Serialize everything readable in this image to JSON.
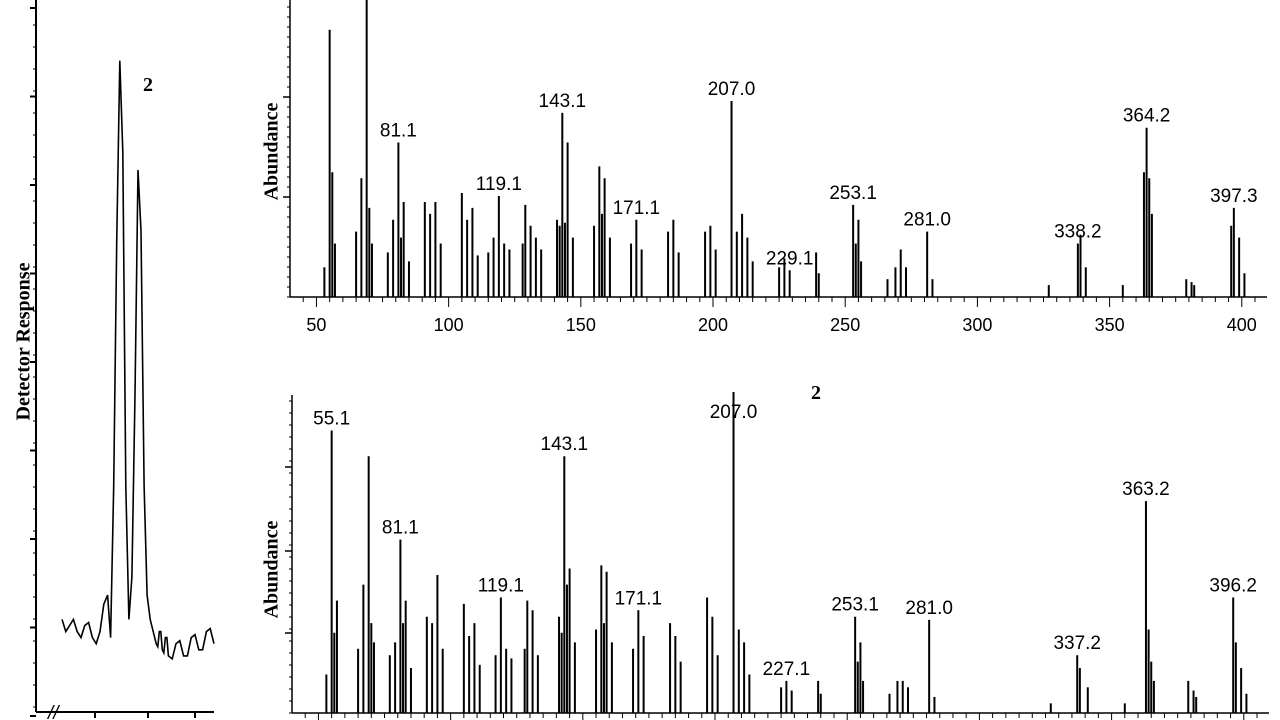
{
  "chromatogram": {
    "ylabel": "Detector Response",
    "peak_marker": "2",
    "break_mark": "//"
  },
  "chart_data": [
    {
      "type": "line",
      "title": "",
      "xlabel": "",
      "ylabel": "Detector Response",
      "annotations": [
        "2"
      ],
      "x": [
        0,
        5,
        10,
        15,
        20,
        25,
        30,
        32,
        34,
        36,
        38,
        40,
        42,
        44,
        46,
        48,
        50,
        52,
        54,
        56,
        58,
        60,
        62,
        64,
        66,
        68,
        70,
        75,
        80,
        85,
        90,
        95,
        100
      ],
      "y": [
        0.08,
        0.07,
        0.06,
        0.07,
        0.05,
        0.06,
        0.12,
        0.05,
        0.3,
        0.7,
        1.0,
        0.85,
        0.3,
        0.08,
        0.15,
        0.45,
        0.82,
        0.72,
        0.3,
        0.12,
        0.08,
        0.06,
        0.04,
        0.06,
        0.03,
        0.05,
        0.02,
        0.04,
        0.02,
        0.05,
        0.03,
        0.06,
        0.04
      ],
      "xlim": [
        0,
        100
      ],
      "ylim": [
        0,
        1.1
      ]
    },
    {
      "type": "bar",
      "title": "",
      "xlabel": "",
      "ylabel": "Abundance",
      "xlim": [
        40,
        405
      ],
      "ylim": [
        0,
        100
      ],
      "xticks": [
        50,
        100,
        150,
        200,
        250,
        300,
        350,
        400
      ],
      "peaks": [
        {
          "mz": 53,
          "ab": 10
        },
        {
          "mz": 55,
          "ab": 90
        },
        {
          "mz": 56,
          "ab": 42
        },
        {
          "mz": 57,
          "ab": 18
        },
        {
          "mz": 65,
          "ab": 22
        },
        {
          "mz": 67,
          "ab": 40
        },
        {
          "mz": 69,
          "ab": 100
        },
        {
          "mz": 70,
          "ab": 30
        },
        {
          "mz": 71,
          "ab": 18
        },
        {
          "mz": 77,
          "ab": 15
        },
        {
          "mz": 79,
          "ab": 26
        },
        {
          "mz": 81,
          "ab": 52
        },
        {
          "mz": 82,
          "ab": 20
        },
        {
          "mz": 83,
          "ab": 32
        },
        {
          "mz": 85,
          "ab": 12
        },
        {
          "mz": 91,
          "ab": 32
        },
        {
          "mz": 93,
          "ab": 28
        },
        {
          "mz": 95,
          "ab": 32
        },
        {
          "mz": 97,
          "ab": 18
        },
        {
          "mz": 105,
          "ab": 35
        },
        {
          "mz": 107,
          "ab": 26
        },
        {
          "mz": 109,
          "ab": 30
        },
        {
          "mz": 111,
          "ab": 14
        },
        {
          "mz": 115,
          "ab": 15
        },
        {
          "mz": 117,
          "ab": 20
        },
        {
          "mz": 119,
          "ab": 34
        },
        {
          "mz": 121,
          "ab": 18
        },
        {
          "mz": 123,
          "ab": 16
        },
        {
          "mz": 128,
          "ab": 18
        },
        {
          "mz": 129,
          "ab": 31
        },
        {
          "mz": 131,
          "ab": 24
        },
        {
          "mz": 133,
          "ab": 20
        },
        {
          "mz": 135,
          "ab": 16
        },
        {
          "mz": 141,
          "ab": 26
        },
        {
          "mz": 142,
          "ab": 24
        },
        {
          "mz": 143,
          "ab": 62
        },
        {
          "mz": 144,
          "ab": 25
        },
        {
          "mz": 145,
          "ab": 52
        },
        {
          "mz": 147,
          "ab": 20
        },
        {
          "mz": 155,
          "ab": 24
        },
        {
          "mz": 157,
          "ab": 44
        },
        {
          "mz": 158,
          "ab": 28
        },
        {
          "mz": 159,
          "ab": 40
        },
        {
          "mz": 161,
          "ab": 20
        },
        {
          "mz": 169,
          "ab": 18
        },
        {
          "mz": 171,
          "ab": 26
        },
        {
          "mz": 173,
          "ab": 16
        },
        {
          "mz": 183,
          "ab": 22
        },
        {
          "mz": 185,
          "ab": 26
        },
        {
          "mz": 187,
          "ab": 15
        },
        {
          "mz": 197,
          "ab": 22
        },
        {
          "mz": 199,
          "ab": 24
        },
        {
          "mz": 201,
          "ab": 16
        },
        {
          "mz": 207,
          "ab": 66
        },
        {
          "mz": 209,
          "ab": 22
        },
        {
          "mz": 211,
          "ab": 28
        },
        {
          "mz": 213,
          "ab": 20
        },
        {
          "mz": 215,
          "ab": 12
        },
        {
          "mz": 225,
          "ab": 10
        },
        {
          "mz": 227,
          "ab": 13
        },
        {
          "mz": 229,
          "ab": 9
        },
        {
          "mz": 239,
          "ab": 15
        },
        {
          "mz": 240,
          "ab": 8
        },
        {
          "mz": 253,
          "ab": 31
        },
        {
          "mz": 254,
          "ab": 18
        },
        {
          "mz": 255,
          "ab": 26
        },
        {
          "mz": 256,
          "ab": 12
        },
        {
          "mz": 266,
          "ab": 6
        },
        {
          "mz": 269,
          "ab": 10
        },
        {
          "mz": 271,
          "ab": 16
        },
        {
          "mz": 273,
          "ab": 10
        },
        {
          "mz": 281,
          "ab": 22
        },
        {
          "mz": 283,
          "ab": 6
        },
        {
          "mz": 327,
          "ab": 4
        },
        {
          "mz": 338,
          "ab": 18
        },
        {
          "mz": 339,
          "ab": 21
        },
        {
          "mz": 341,
          "ab": 10
        },
        {
          "mz": 355,
          "ab": 4
        },
        {
          "mz": 363,
          "ab": 42
        },
        {
          "mz": 364,
          "ab": 57
        },
        {
          "mz": 365,
          "ab": 40
        },
        {
          "mz": 366,
          "ab": 28
        },
        {
          "mz": 379,
          "ab": 6
        },
        {
          "mz": 381,
          "ab": 5
        },
        {
          "mz": 382,
          "ab": 4
        },
        {
          "mz": 396,
          "ab": 24
        },
        {
          "mz": 397,
          "ab": 30
        },
        {
          "mz": 399,
          "ab": 20
        },
        {
          "mz": 401,
          "ab": 8
        }
      ],
      "labels": [
        {
          "mz": 81,
          "text": "81.1"
        },
        {
          "mz": 119,
          "text": "119.1"
        },
        {
          "mz": 143,
          "text": "143.1"
        },
        {
          "mz": 171,
          "text": "171.1"
        },
        {
          "mz": 207,
          "text": "207.0"
        },
        {
          "mz": 229,
          "text": "229.1"
        },
        {
          "mz": 253,
          "text": "253.1"
        },
        {
          "mz": 281,
          "text": "281.0"
        },
        {
          "mz": 338,
          "text": "338.2"
        },
        {
          "mz": 364,
          "text": "364.2"
        },
        {
          "mz": 397,
          "text": "397.3"
        }
      ]
    },
    {
      "type": "bar",
      "title": "2",
      "xlabel": "",
      "ylabel": "Abundance",
      "xlim": [
        40,
        405
      ],
      "ylim": [
        0,
        100
      ],
      "peaks": [
        {
          "mz": 53,
          "ab": 12
        },
        {
          "mz": 55,
          "ab": 88
        },
        {
          "mz": 56,
          "ab": 25
        },
        {
          "mz": 57,
          "ab": 35
        },
        {
          "mz": 65,
          "ab": 20
        },
        {
          "mz": 67,
          "ab": 40
        },
        {
          "mz": 69,
          "ab": 80
        },
        {
          "mz": 70,
          "ab": 28
        },
        {
          "mz": 71,
          "ab": 22
        },
        {
          "mz": 77,
          "ab": 18
        },
        {
          "mz": 79,
          "ab": 22
        },
        {
          "mz": 81,
          "ab": 54
        },
        {
          "mz": 82,
          "ab": 28
        },
        {
          "mz": 83,
          "ab": 35
        },
        {
          "mz": 85,
          "ab": 14
        },
        {
          "mz": 91,
          "ab": 30
        },
        {
          "mz": 93,
          "ab": 28
        },
        {
          "mz": 95,
          "ab": 43
        },
        {
          "mz": 97,
          "ab": 20
        },
        {
          "mz": 105,
          "ab": 34
        },
        {
          "mz": 107,
          "ab": 24
        },
        {
          "mz": 109,
          "ab": 28
        },
        {
          "mz": 111,
          "ab": 15
        },
        {
          "mz": 117,
          "ab": 18
        },
        {
          "mz": 119,
          "ab": 36
        },
        {
          "mz": 121,
          "ab": 20
        },
        {
          "mz": 123,
          "ab": 17
        },
        {
          "mz": 128,
          "ab": 20
        },
        {
          "mz": 129,
          "ab": 35
        },
        {
          "mz": 131,
          "ab": 32
        },
        {
          "mz": 133,
          "ab": 18
        },
        {
          "mz": 141,
          "ab": 30
        },
        {
          "mz": 142,
          "ab": 25
        },
        {
          "mz": 143,
          "ab": 80
        },
        {
          "mz": 144,
          "ab": 40
        },
        {
          "mz": 145,
          "ab": 45
        },
        {
          "mz": 147,
          "ab": 22
        },
        {
          "mz": 155,
          "ab": 26
        },
        {
          "mz": 157,
          "ab": 46
        },
        {
          "mz": 158,
          "ab": 28
        },
        {
          "mz": 159,
          "ab": 44
        },
        {
          "mz": 161,
          "ab": 22
        },
        {
          "mz": 169,
          "ab": 20
        },
        {
          "mz": 171,
          "ab": 32
        },
        {
          "mz": 173,
          "ab": 24
        },
        {
          "mz": 183,
          "ab": 28
        },
        {
          "mz": 185,
          "ab": 24
        },
        {
          "mz": 187,
          "ab": 16
        },
        {
          "mz": 197,
          "ab": 36
        },
        {
          "mz": 199,
          "ab": 30
        },
        {
          "mz": 201,
          "ab": 18
        },
        {
          "mz": 207,
          "ab": 100
        },
        {
          "mz": 209,
          "ab": 26
        },
        {
          "mz": 211,
          "ab": 22
        },
        {
          "mz": 213,
          "ab": 12
        },
        {
          "mz": 225,
          "ab": 8
        },
        {
          "mz": 227,
          "ab": 10
        },
        {
          "mz": 229,
          "ab": 7
        },
        {
          "mz": 239,
          "ab": 10
        },
        {
          "mz": 240,
          "ab": 6
        },
        {
          "mz": 253,
          "ab": 30
        },
        {
          "mz": 254,
          "ab": 16
        },
        {
          "mz": 255,
          "ab": 22
        },
        {
          "mz": 256,
          "ab": 10
        },
        {
          "mz": 266,
          "ab": 6
        },
        {
          "mz": 269,
          "ab": 10
        },
        {
          "mz": 271,
          "ab": 10
        },
        {
          "mz": 273,
          "ab": 8
        },
        {
          "mz": 281,
          "ab": 29
        },
        {
          "mz": 283,
          "ab": 5
        },
        {
          "mz": 327,
          "ab": 3
        },
        {
          "mz": 337,
          "ab": 18
        },
        {
          "mz": 338,
          "ab": 14
        },
        {
          "mz": 341,
          "ab": 8
        },
        {
          "mz": 355,
          "ab": 3
        },
        {
          "mz": 363,
          "ab": 66
        },
        {
          "mz": 364,
          "ab": 26
        },
        {
          "mz": 365,
          "ab": 16
        },
        {
          "mz": 366,
          "ab": 10
        },
        {
          "mz": 379,
          "ab": 10
        },
        {
          "mz": 381,
          "ab": 7
        },
        {
          "mz": 382,
          "ab": 5
        },
        {
          "mz": 396,
          "ab": 36
        },
        {
          "mz": 397,
          "ab": 22
        },
        {
          "mz": 399,
          "ab": 14
        },
        {
          "mz": 401,
          "ab": 6
        }
      ],
      "labels": [
        {
          "mz": 55,
          "text": "55.1"
        },
        {
          "mz": 81,
          "text": "81.1"
        },
        {
          "mz": 119,
          "text": "119.1"
        },
        {
          "mz": 143,
          "text": "143.1"
        },
        {
          "mz": 171,
          "text": "171.1"
        },
        {
          "mz": 207,
          "text": "207.0"
        },
        {
          "mz": 227,
          "text": "227.1"
        },
        {
          "mz": 253,
          "text": "253.1"
        },
        {
          "mz": 281,
          "text": "281.0"
        },
        {
          "mz": 337,
          "text": "337.2"
        },
        {
          "mz": 363,
          "text": "363.2"
        },
        {
          "mz": 396,
          "text": "396.2"
        }
      ]
    }
  ]
}
